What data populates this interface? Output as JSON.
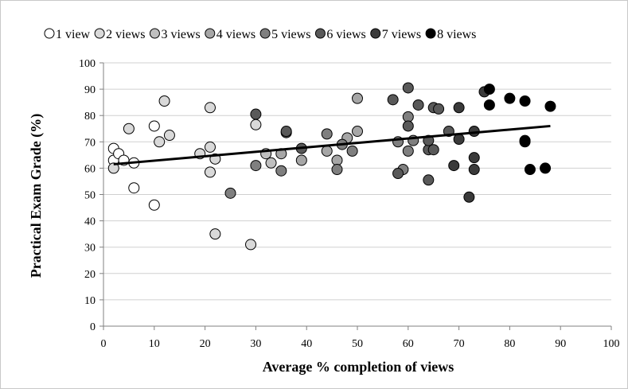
{
  "chart_data": {
    "type": "scatter",
    "title": "",
    "xlabel": "Average % completion of views",
    "ylabel": "Practical Exam Grade (%)",
    "xlim": [
      0,
      100
    ],
    "ylim": [
      0,
      100
    ],
    "x_ticks": [
      "0",
      "10",
      "20",
      "30",
      "40",
      "50",
      "60",
      "70",
      "80",
      "90",
      "100"
    ],
    "y_ticks": [
      "0",
      "10",
      "20",
      "30",
      "40",
      "50",
      "60",
      "70",
      "80",
      "90",
      "100"
    ],
    "grid": "horizontal",
    "legend_position": "top",
    "series": [
      {
        "name": "1 view",
        "color": "#ffffff",
        "points": [
          [
            2,
            67.5
          ],
          [
            2,
            63
          ],
          [
            3,
            65.5
          ],
          [
            4,
            63
          ],
          [
            6,
            62
          ],
          [
            6,
            52.5
          ],
          [
            10,
            46
          ],
          [
            10,
            76
          ]
        ]
      },
      {
        "name": "2 views",
        "color": "#d9d9d9",
        "points": [
          [
            2,
            60
          ],
          [
            5,
            75
          ],
          [
            11,
            70
          ],
          [
            12,
            85.5
          ],
          [
            13,
            72.5
          ],
          [
            19,
            65.5
          ],
          [
            21,
            83
          ],
          [
            21,
            68
          ],
          [
            21,
            58.5
          ],
          [
            22,
            63.5
          ],
          [
            22,
            35
          ],
          [
            29,
            31
          ],
          [
            30,
            76.5
          ]
        ]
      },
      {
        "name": "3 views",
        "color": "#bfbfbf",
        "points": [
          [
            32,
            65.5
          ],
          [
            33,
            62
          ]
        ]
      },
      {
        "name": "4 views",
        "color": "#a6a6a6",
        "points": [
          [
            35,
            65.5
          ],
          [
            39,
            63
          ],
          [
            44,
            66.5
          ],
          [
            46,
            63
          ],
          [
            48,
            71.5
          ],
          [
            50,
            74
          ],
          [
            50,
            86.5
          ]
        ]
      },
      {
        "name": "5 views",
        "color": "#7f7f7f",
        "points": [
          [
            25,
            50.5
          ],
          [
            30,
            61
          ],
          [
            35,
            59
          ],
          [
            44,
            73
          ],
          [
            46,
            59.5
          ],
          [
            47,
            69
          ],
          [
            49,
            66.5
          ],
          [
            58,
            70
          ],
          [
            59,
            59.5
          ],
          [
            60,
            79.5
          ],
          [
            60,
            66.5
          ],
          [
            61,
            70.5
          ]
        ]
      },
      {
        "name": "6 views",
        "color": "#595959",
        "points": [
          [
            30,
            80.5
          ],
          [
            36,
            73.5
          ],
          [
            36,
            74
          ],
          [
            39,
            67.5
          ],
          [
            57,
            86
          ],
          [
            58,
            58
          ],
          [
            60,
            90.5
          ],
          [
            60,
            76
          ],
          [
            62,
            84
          ],
          [
            64,
            67
          ],
          [
            64,
            70.5
          ],
          [
            64,
            55.5
          ],
          [
            65,
            67
          ],
          [
            65,
            83
          ],
          [
            66,
            82.5
          ],
          [
            68,
            74
          ]
        ]
      },
      {
        "name": "7 views",
        "color": "#3a3a3a",
        "points": [
          [
            69,
            61
          ],
          [
            70,
            71
          ],
          [
            70,
            83
          ],
          [
            72,
            49
          ],
          [
            73,
            74
          ],
          [
            73,
            64
          ],
          [
            73,
            59.5
          ],
          [
            75,
            89
          ]
        ]
      },
      {
        "name": "8 views",
        "color": "#000000",
        "points": [
          [
            76,
            90
          ],
          [
            76,
            84
          ],
          [
            80,
            86.5
          ],
          [
            83,
            85.5
          ],
          [
            83,
            70.5
          ],
          [
            83,
            70
          ],
          [
            84,
            59.5
          ],
          [
            87,
            60
          ],
          [
            88,
            83.5
          ]
        ]
      }
    ],
    "trendline": {
      "x": [
        2,
        88
      ],
      "y": [
        61.5,
        76
      ]
    }
  }
}
